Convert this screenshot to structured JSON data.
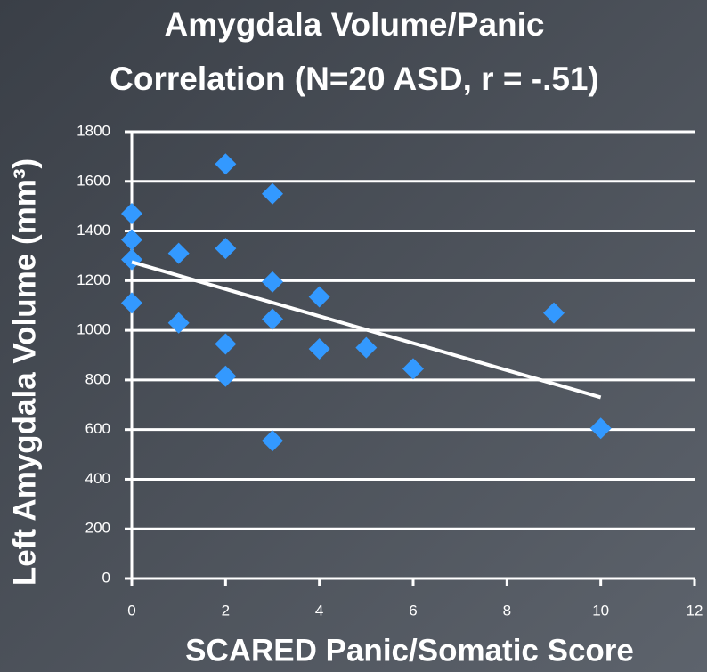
{
  "chart_data": {
    "type": "scatter",
    "title": [
      "Amygdala Volume/Panic",
      "Correlation (N=20 ASD, r = -.51)"
    ],
    "x_label": "SCARED Panic/Somatic Score",
    "y_label": "Left Amygdala Volume (mm³)",
    "x": [
      0,
      0,
      0,
      0,
      1,
      1,
      2,
      2,
      2,
      2,
      3,
      3,
      3,
      3,
      4,
      4,
      5,
      6,
      9,
      10
    ],
    "values": [
      1470,
      1365,
      1285,
      1110,
      1310,
      1030,
      1670,
      1330,
      945,
      815,
      1550,
      1195,
      1045,
      555,
      1135,
      925,
      930,
      845,
      1070,
      605
    ],
    "color": "#3399ff",
    "trendline": {
      "x": [
        0,
        10
      ],
      "values": [
        1275,
        730
      ],
      "color": "#ffffff"
    },
    "xlim": [
      0,
      12
    ],
    "xticks": [
      0,
      2,
      4,
      6,
      8,
      10,
      12
    ],
    "ylim": [
      0,
      1800
    ],
    "yticks": [
      0,
      200,
      400,
      600,
      800,
      1000,
      1200,
      1400,
      1600,
      1800
    ],
    "grid": true
  }
}
